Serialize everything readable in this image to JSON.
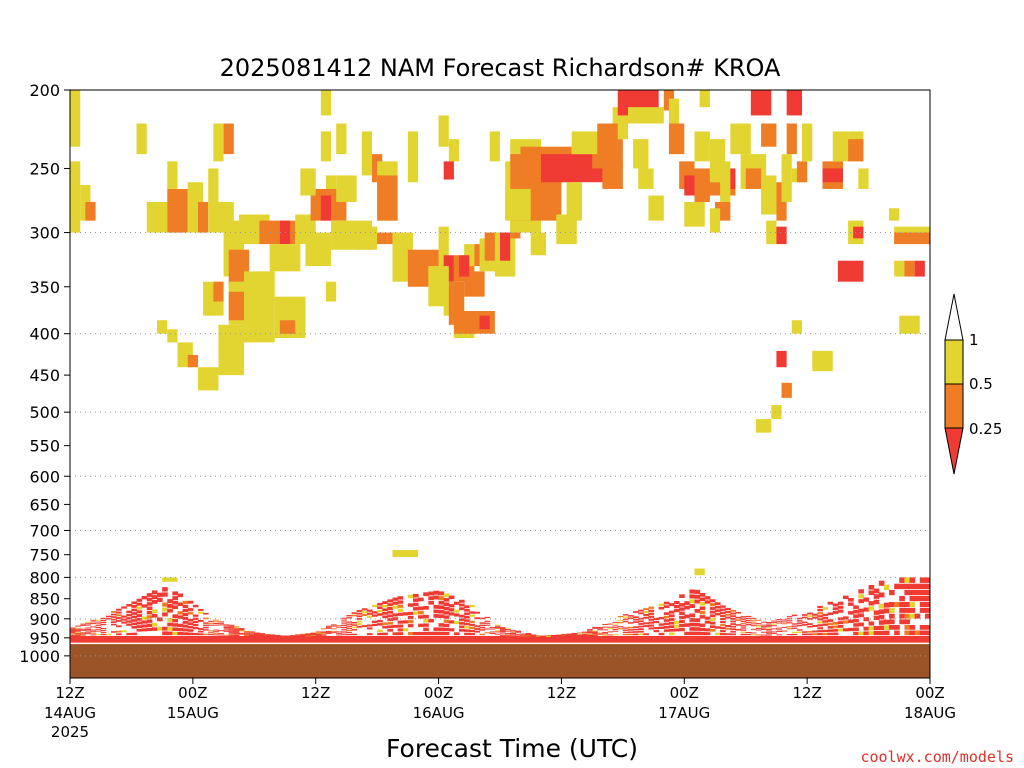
{
  "chart_data": {
    "type": "heatmap",
    "title": "2025081412 NAM Forecast Richardson# KROA",
    "xlabel": "Forecast Time (UTC)",
    "credit": "coolwx.com/models",
    "y_scale": "log-pressure",
    "ylim": [
      1000,
      200
    ],
    "y_ticks": [
      200,
      250,
      300,
      350,
      400,
      450,
      500,
      550,
      600,
      650,
      700,
      750,
      800,
      850,
      900,
      950,
      1000
    ],
    "y_dotted_gridlines": [
      300,
      400,
      500,
      600,
      700,
      800,
      900,
      1000
    ],
    "x_range_hours": [
      0,
      84
    ],
    "x_ticks": [
      {
        "hour": 0,
        "label": "12Z",
        "date": "14AUG",
        "year": "2025"
      },
      {
        "hour": 12,
        "label": "00Z",
        "date": "15AUG",
        "year": ""
      },
      {
        "hour": 24,
        "label": "12Z",
        "date": "",
        "year": ""
      },
      {
        "hour": 36,
        "label": "00Z",
        "date": "16AUG",
        "year": ""
      },
      {
        "hour": 48,
        "label": "12Z",
        "date": "",
        "year": ""
      },
      {
        "hour": 60,
        "label": "00Z",
        "date": "17AUG",
        "year": ""
      },
      {
        "hour": 72,
        "label": "12Z",
        "date": "",
        "year": ""
      },
      {
        "hour": 84,
        "label": "00Z",
        "date": "18AUG",
        "year": ""
      }
    ],
    "legend": {
      "labels": [
        "1",
        "0.5",
        "0.25"
      ],
      "bins": [
        {
          "range": "0.5-1",
          "color": "#e2d532"
        },
        {
          "range": "0.25-0.5",
          "color": "#ee7d26"
        },
        {
          "range": "<0.25",
          "color": "#f03b35"
        }
      ]
    },
    "ground": {
      "top_pressure": 965,
      "color": "#9b5428"
    },
    "colors": {
      "yellow": "#e2d532",
      "orange": "#ee7d26",
      "red": "#f03b35"
    },
    "cells": [
      [
        "y",
        0,
        1,
        200,
        235
      ],
      [
        "y",
        0,
        1,
        245,
        300
      ],
      [
        "y",
        1,
        2,
        262,
        290
      ],
      [
        "o",
        1.5,
        2.5,
        275,
        290
      ],
      [
        "y",
        6.5,
        7.5,
        220,
        240
      ],
      [
        "y",
        7.5,
        9.5,
        275,
        300
      ],
      [
        "o",
        9.5,
        11.5,
        265,
        300
      ],
      [
        "y",
        9.5,
        10.5,
        245,
        265
      ],
      [
        "y",
        11.5,
        13,
        260,
        300
      ],
      [
        "o",
        12.5,
        13.5,
        275,
        300
      ],
      [
        "y",
        13.5,
        14.5,
        250,
        280
      ],
      [
        "y",
        13.5,
        16,
        275,
        300
      ],
      [
        "y",
        14,
        15,
        220,
        245
      ],
      [
        "o",
        15,
        16,
        220,
        240
      ],
      [
        "y",
        8.5,
        9.5,
        385,
        400
      ],
      [
        "y",
        9.5,
        10.5,
        395,
        410
      ],
      [
        "y",
        10.5,
        12,
        410,
        440
      ],
      [
        "o",
        11.5,
        12.5,
        425,
        440
      ],
      [
        "y",
        12.5,
        14.5,
        440,
        470
      ],
      [
        "y",
        15,
        17,
        290,
        340
      ],
      [
        "o",
        15.5,
        17.5,
        315,
        350
      ],
      [
        "y",
        13,
        15,
        345,
        380
      ],
      [
        "o",
        14,
        15,
        345,
        365
      ],
      [
        "y",
        15.5,
        17.5,
        345,
        390
      ],
      [
        "o",
        15.5,
        17.5,
        355,
        385
      ],
      [
        "y",
        14.5,
        17,
        390,
        450
      ],
      [
        "y",
        17,
        20,
        335,
        410
      ],
      [
        "y",
        16.5,
        19.5,
        285,
        310
      ],
      [
        "o",
        18.5,
        22,
        290,
        310
      ],
      [
        "r",
        20.5,
        21.5,
        290,
        310
      ],
      [
        "y",
        19.5,
        22.5,
        310,
        335
      ],
      [
        "y",
        20,
        23,
        360,
        405
      ],
      [
        "o",
        20.5,
        22,
        385,
        400
      ],
      [
        "y",
        22,
        24,
        285,
        310
      ],
      [
        "y",
        23,
        25.5,
        300,
        330
      ],
      [
        "y",
        25,
        26,
        255,
        285
      ],
      [
        "o",
        23.5,
        27,
        265,
        290
      ],
      [
        "r",
        24.5,
        25.5,
        270,
        290
      ],
      [
        "y",
        22.5,
        24,
        250,
        270
      ],
      [
        "y",
        24.5,
        25.5,
        225,
        245
      ],
      [
        "y",
        26,
        28,
        255,
        275
      ],
      [
        "y",
        25.5,
        29.5,
        290,
        315
      ],
      [
        "y",
        25,
        26,
        345,
        365
      ],
      [
        "y",
        24.5,
        25.5,
        200,
        215
      ],
      [
        "y",
        26,
        27,
        220,
        240
      ],
      [
        "y",
        28.5,
        29.5,
        225,
        255
      ],
      [
        "o",
        29.5,
        30.5,
        240,
        260
      ],
      [
        "y",
        30,
        32,
        245,
        290
      ],
      [
        "o",
        30,
        32,
        255,
        290
      ],
      [
        "o",
        29,
        31,
        300,
        310
      ],
      [
        "y",
        28,
        30,
        295,
        315
      ],
      [
        "o",
        31,
        32.5,
        300,
        310
      ],
      [
        "y",
        31.5,
        33.5,
        300,
        345
      ],
      [
        "o",
        33,
        36.5,
        315,
        350
      ],
      [
        "y",
        33,
        34,
        225,
        260
      ],
      [
        "y",
        36,
        37,
        295,
        330
      ],
      [
        "r",
        36.5,
        37.5,
        320,
        345
      ],
      [
        "y",
        35,
        37,
        330,
        370
      ],
      [
        "y",
        36.5,
        38.5,
        350,
        380
      ],
      [
        "o",
        37,
        38.5,
        345,
        390
      ],
      [
        "y",
        37.5,
        39.5,
        385,
        405
      ],
      [
        "o",
        37.5,
        41.5,
        375,
        400
      ],
      [
        "r",
        40,
        41,
        380,
        395
      ],
      [
        "o",
        37.5,
        39.5,
        320,
        345
      ],
      [
        "y",
        38.5,
        39.5,
        310,
        330
      ],
      [
        "o",
        38.5,
        40.5,
        335,
        360
      ],
      [
        "o",
        39.5,
        40.5,
        310,
        330
      ],
      [
        "r",
        38,
        39,
        320,
        340
      ],
      [
        "y",
        36,
        37,
        215,
        235
      ],
      [
        "y",
        37,
        38,
        230,
        245
      ],
      [
        "r",
        36.5,
        37.5,
        245,
        258
      ],
      [
        "y",
        40,
        42,
        305,
        335
      ],
      [
        "o",
        40.5,
        42,
        300,
        325
      ],
      [
        "y",
        41.5,
        43.5,
        300,
        340
      ],
      [
        "r",
        42,
        43,
        300,
        325
      ],
      [
        "o",
        43,
        44,
        295,
        305
      ],
      [
        "y",
        43,
        44,
        270,
        300
      ],
      [
        "y",
        42.5,
        43.5,
        245,
        265
      ],
      [
        "y",
        41,
        42,
        225,
        245
      ],
      [
        "y",
        43,
        46,
        230,
        300
      ],
      [
        "o",
        43,
        48,
        240,
        290
      ],
      [
        "o",
        44,
        49,
        235,
        260
      ],
      [
        "r",
        46,
        53,
        240,
        260
      ],
      [
        "o",
        51,
        54,
        230,
        250
      ],
      [
        "y",
        49,
        52,
        225,
        240
      ],
      [
        "y",
        52,
        53.5,
        220,
        235
      ],
      [
        "y",
        53,
        54.5,
        210,
        230
      ],
      [
        "o",
        51.5,
        53.5,
        220,
        240
      ],
      [
        "o",
        52,
        54,
        245,
        265
      ],
      [
        "y",
        47.5,
        49.5,
        285,
        310
      ],
      [
        "y",
        48.5,
        50,
        260,
        290
      ],
      [
        "y",
        42.5,
        45,
        265,
        290
      ],
      [
        "y",
        45,
        46.5,
        300,
        320
      ],
      [
        "r",
        53.5,
        57.5,
        200,
        215
      ],
      [
        "y",
        54.5,
        58,
        210,
        220
      ],
      [
        "o",
        58,
        59,
        200,
        212
      ],
      [
        "y",
        58.5,
        59.5,
        205,
        220
      ],
      [
        "y",
        55,
        56.5,
        230,
        250
      ],
      [
        "y",
        55.5,
        57,
        250,
        265
      ],
      [
        "y",
        56.5,
        58,
        270,
        290
      ],
      [
        "o",
        58.5,
        60,
        220,
        240
      ],
      [
        "o",
        59.5,
        61,
        245,
        265
      ],
      [
        "r",
        60,
        61,
        255,
        270
      ],
      [
        "y",
        61,
        62.5,
        225,
        245
      ],
      [
        "y",
        61.5,
        62.5,
        200,
        210
      ],
      [
        "y",
        60,
        62,
        275,
        295
      ],
      [
        "o",
        61,
        62.5,
        250,
        275
      ],
      [
        "o",
        62,
        65,
        255,
        270
      ],
      [
        "r",
        64,
        65,
        250,
        265
      ],
      [
        "y",
        62.5,
        64,
        230,
        260
      ],
      [
        "y",
        63.5,
        64.5,
        245,
        280
      ],
      [
        "o",
        63,
        64.5,
        275,
        290
      ],
      [
        "y",
        62.5,
        63.5,
        280,
        300
      ],
      [
        "y",
        64.5,
        66.5,
        220,
        240
      ],
      [
        "y",
        65.5,
        68,
        240,
        265
      ],
      [
        "o",
        66,
        67.5,
        250,
        265
      ],
      [
        "r",
        66.5,
        68.5,
        200,
        215
      ],
      [
        "o",
        67.5,
        69,
        220,
        235
      ],
      [
        "y",
        67.5,
        69,
        255,
        285
      ],
      [
        "y",
        68,
        69,
        290,
        310
      ],
      [
        "r",
        69,
        70,
        295,
        310
      ],
      [
        "o",
        69,
        70,
        260,
        290
      ],
      [
        "y",
        69.5,
        70.5,
        240,
        275
      ],
      [
        "o",
        70,
        71,
        220,
        240
      ],
      [
        "r",
        70,
        71.5,
        200,
        215
      ],
      [
        "y",
        70.5,
        72,
        250,
        260
      ],
      [
        "o",
        71,
        72,
        245,
        260
      ],
      [
        "y",
        71.5,
        72.5,
        220,
        245
      ],
      [
        "o",
        73.5,
        75.5,
        245,
        265
      ],
      [
        "r",
        73.5,
        75.5,
        250,
        260
      ],
      [
        "y",
        74.5,
        76,
        225,
        245
      ],
      [
        "y",
        76,
        77.5,
        225,
        245
      ],
      [
        "o",
        76,
        77.5,
        230,
        245
      ],
      [
        "y",
        77,
        78,
        250,
        265
      ],
      [
        "y",
        76,
        77.5,
        290,
        310
      ],
      [
        "r",
        76.5,
        77.5,
        295,
        305
      ],
      [
        "r",
        75,
        77.5,
        325,
        345
      ],
      [
        "y",
        80,
        81,
        280,
        290
      ],
      [
        "y",
        80.5,
        84,
        295,
        310
      ],
      [
        "o",
        80.5,
        84,
        300,
        310
      ],
      [
        "y",
        80.5,
        81.5,
        325,
        340
      ],
      [
        "o",
        81.5,
        82.5,
        325,
        340
      ],
      [
        "r",
        82.5,
        83.5,
        325,
        340
      ],
      [
        "y",
        81,
        83,
        380,
        400
      ],
      [
        "y",
        70.5,
        71.5,
        385,
        400
      ],
      [
        "r",
        69,
        70,
        420,
        440
      ],
      [
        "y",
        72.5,
        74.5,
        420,
        445
      ],
      [
        "y",
        69.5,
        70.5,
        460,
        480
      ],
      [
        "o",
        69.5,
        70.5,
        460,
        480
      ],
      [
        "y",
        68.5,
        69.5,
        490,
        510
      ],
      [
        "y",
        67,
        68.5,
        510,
        530
      ],
      [
        "y",
        31.5,
        34,
        740,
        755
      ],
      [
        "y",
        9,
        10.5,
        800,
        810
      ],
      [
        "y",
        61,
        62,
        780,
        795
      ]
    ],
    "boundary_layer_ridges": [
      {
        "hour": 0,
        "top": 925
      },
      {
        "hour": 3,
        "top": 895
      },
      {
        "hour": 6,
        "top": 860
      },
      {
        "hour": 9,
        "top": 820
      },
      {
        "hour": 11,
        "top": 840
      },
      {
        "hour": 14,
        "top": 900
      },
      {
        "hour": 18,
        "top": 935
      },
      {
        "hour": 21,
        "top": 945
      },
      {
        "hour": 24,
        "top": 935
      },
      {
        "hour": 28,
        "top": 880
      },
      {
        "hour": 32,
        "top": 845
      },
      {
        "hour": 36,
        "top": 830
      },
      {
        "hour": 39,
        "top": 860
      },
      {
        "hour": 42,
        "top": 920
      },
      {
        "hour": 46,
        "top": 945
      },
      {
        "hour": 50,
        "top": 935
      },
      {
        "hour": 54,
        "top": 890
      },
      {
        "hour": 58,
        "top": 860
      },
      {
        "hour": 61,
        "top": 825
      },
      {
        "hour": 64,
        "top": 870
      },
      {
        "hour": 68,
        "top": 910
      },
      {
        "hour": 72,
        "top": 880
      },
      {
        "hour": 76,
        "top": 840
      },
      {
        "hour": 80,
        "top": 800
      },
      {
        "hour": 84,
        "top": 800
      }
    ]
  }
}
